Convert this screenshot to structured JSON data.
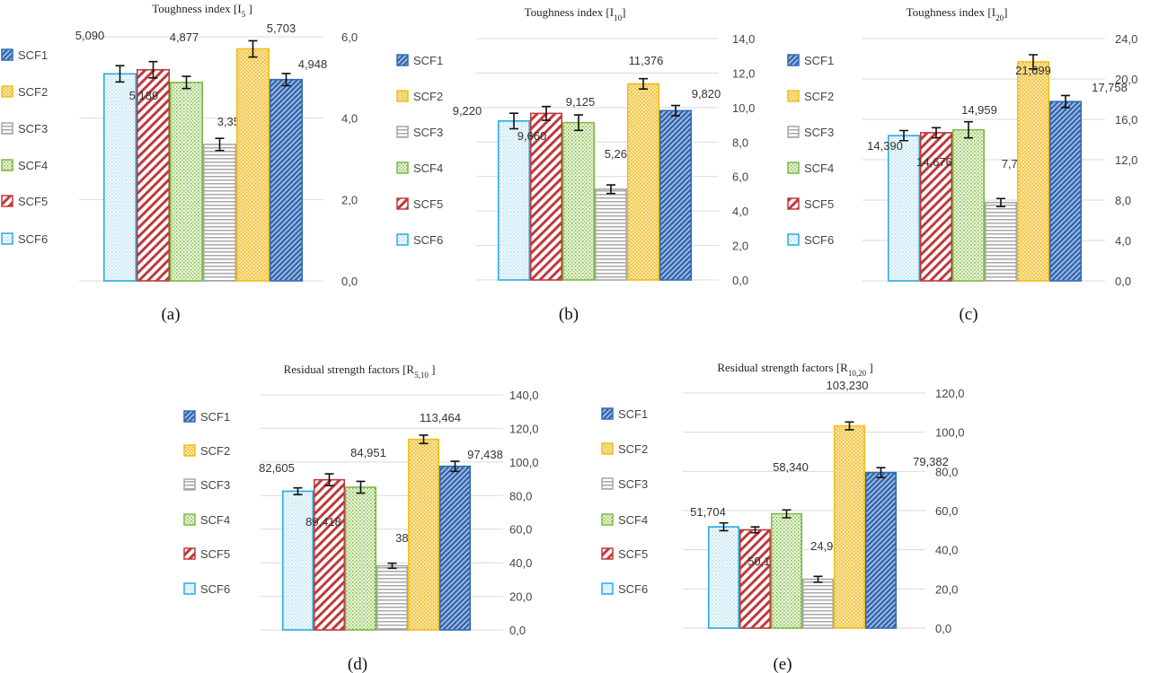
{
  "series_colors": {
    "SCF1": "#2e6db4",
    "SCF2": "#f2bd1d",
    "SCF3": "#a6a6a6",
    "SCF4": "#7cb944",
    "SCF5": "#c0393b",
    "SCF6": "#29abe2"
  },
  "legend_order": [
    "SCF1",
    "SCF2",
    "SCF3",
    "SCF4",
    "SCF5",
    "SCF6"
  ],
  "chart_data": [
    {
      "type": "bar",
      "panel": "(a)",
      "title": {
        "main": "Toughness index [I",
        "sub": "5",
        "end": " ]"
      },
      "categories": [
        "SCF6",
        "SCF5",
        "SCF4",
        "SCF3",
        "SCF2",
        "SCF1"
      ],
      "values": [
        5.09,
        5.189,
        4.877,
        3.354,
        5.703,
        4.948
      ],
      "value_labels": [
        "5,090",
        "5,189",
        "4,877",
        "3,354",
        "5,703",
        "4,948"
      ],
      "error": [
        0.2,
        0.2,
        0.15,
        0.15,
        0.2,
        0.15
      ],
      "ylim": [
        0,
        6
      ],
      "yticks": [
        "0,0",
        "2,0",
        "4,0",
        "6,0"
      ],
      "y_axis_side": "right",
      "grid": true,
      "legend_placement": "left"
    },
    {
      "type": "bar",
      "panel": "(b)",
      "title": {
        "main": "Toughness index [I",
        "sub": "10",
        "end": "]"
      },
      "categories": [
        "SCF6",
        "SCF5",
        "SCF4",
        "SCF3",
        "SCF2",
        "SCF1"
      ],
      "values": [
        9.22,
        9.66,
        9.125,
        5.264,
        11.376,
        9.82
      ],
      "value_labels": [
        "9,220",
        "9,660",
        "9,125",
        "5,264",
        "11,376",
        "9,820"
      ],
      "error": [
        0.45,
        0.4,
        0.45,
        0.25,
        0.3,
        0.3
      ],
      "ylim": [
        0,
        14
      ],
      "yticks": [
        "0,0",
        "2,0",
        "4,0",
        "6,0",
        "8,0",
        "10,0",
        "12,0",
        "14,0"
      ],
      "y_axis_side": "right",
      "grid": true,
      "legend_placement": "left"
    },
    {
      "type": "bar",
      "panel": "(c)",
      "title": {
        "main": "Toughness index [I",
        "sub": "20",
        "end": "]"
      },
      "categories": [
        "SCF6",
        "SCF5",
        "SCF4",
        "SCF3",
        "SCF2",
        "SCF1"
      ],
      "values": [
        14.39,
        14.676,
        14.959,
        7.756,
        21.699,
        17.758
      ],
      "value_labels": [
        "14,390",
        "14,676",
        "14,959",
        "7,756",
        "21,699",
        "17,758"
      ],
      "error": [
        0.5,
        0.5,
        0.8,
        0.4,
        0.7,
        0.6
      ],
      "ylim": [
        0,
        24
      ],
      "yticks": [
        "0,0",
        "4,0",
        "8,0",
        "12,0",
        "16,0",
        "20,0",
        "24,0"
      ],
      "y_axis_side": "right",
      "grid": true,
      "legend_placement": "left"
    },
    {
      "type": "bar",
      "panel": "(d)",
      "title": {
        "main": "Residual strength factors [R",
        "sub": "5,10",
        "end": " ]"
      },
      "categories": [
        "SCF6",
        "SCF5",
        "SCF4",
        "SCF3",
        "SCF2",
        "SCF1"
      ],
      "values": [
        82.605,
        89.418,
        84.951,
        38.185,
        113.464,
        97.438
      ],
      "value_labels": [
        "82,605",
        "89,418",
        "84,951",
        "38,185",
        "113,464",
        "97,438"
      ],
      "error": [
        2.0,
        3.5,
        3.5,
        1.5,
        2.5,
        3.0
      ],
      "ylim": [
        0,
        140
      ],
      "yticks": [
        "0,0",
        "20,0",
        "40,0",
        "60,0",
        "80,0",
        "100,0",
        "120,0",
        "140,0"
      ],
      "y_axis_side": "right",
      "grid": true,
      "legend_placement": "left"
    },
    {
      "type": "bar",
      "panel": "(e)",
      "title": {
        "main": "Residual strength factors [R",
        "sub": "10,20",
        "end": " ]"
      },
      "categories": [
        "SCF6",
        "SCF5",
        "SCF4",
        "SCF3",
        "SCF2",
        "SCF1"
      ],
      "values": [
        51.704,
        50.165,
        58.34,
        24.926,
        103.23,
        79.382
      ],
      "value_labels": [
        "51,704",
        "50,165",
        "58,340",
        "24,926",
        "103,230",
        "79,382"
      ],
      "error": [
        2.0,
        1.5,
        2.0,
        1.5,
        2.0,
        2.5
      ],
      "ylim": [
        0,
        120
      ],
      "yticks": [
        "0,0",
        "20,0",
        "40,0",
        "60,0",
        "80,0",
        "100,0",
        "120,0"
      ],
      "y_axis_side": "right",
      "grid": true,
      "legend_placement": "left"
    }
  ]
}
